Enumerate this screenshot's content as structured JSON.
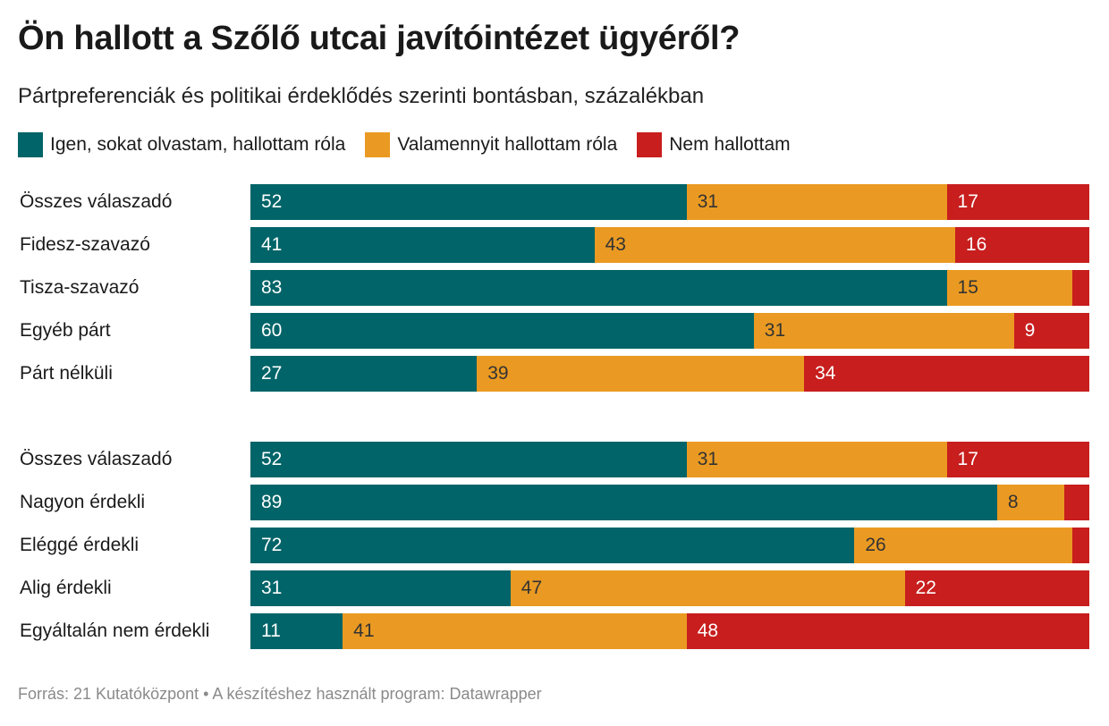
{
  "title": "Ön hallott a Szőlő utcai javítóintézet ügyéről?",
  "subtitle": "Pártpreferenciák és politikai érdeklődés szerinti bontásban, százalékban",
  "source": "Forrás: 21 Kutatóközpont • A készítéshez használt program: Datawrapper",
  "chart_data": {
    "type": "bar",
    "orientation": "horizontal",
    "stacked": true,
    "series": [
      {
        "name": "Igen, sokat olvastam, hallottam róla",
        "color": "#006468"
      },
      {
        "name": "Valamennyit hallottam róla",
        "color": "#ea9a22"
      },
      {
        "name": "Nem hallottam",
        "color": "#c81e1e"
      }
    ],
    "groups": [
      {
        "rows": [
          {
            "category": "Összes válaszadó",
            "values": [
              52,
              31,
              17
            ]
          },
          {
            "category": "Fidesz-szavazó",
            "values": [
              41,
              43,
              16
            ]
          },
          {
            "category": "Tisza-szavazó",
            "values": [
              83,
              15,
              2
            ]
          },
          {
            "category": "Egyéb párt",
            "values": [
              60,
              31,
              9
            ]
          },
          {
            "category": "Párt nélküli",
            "values": [
              27,
              39,
              34
            ]
          }
        ]
      },
      {
        "rows": [
          {
            "category": "Összes válaszadó",
            "values": [
              52,
              31,
              17
            ]
          },
          {
            "category": "Nagyon érdekli",
            "values": [
              89,
              8,
              3
            ]
          },
          {
            "category": "Eléggé érdekli",
            "values": [
              72,
              26,
              2
            ]
          },
          {
            "category": "Alig érdekli",
            "values": [
              31,
              47,
              22
            ]
          },
          {
            "category": "Egyáltalán nem érdekli",
            "values": [
              11,
              41,
              48
            ]
          }
        ]
      }
    ],
    "label_min": 5,
    "legend_position": "top",
    "xlim": [
      0,
      100
    ]
  }
}
